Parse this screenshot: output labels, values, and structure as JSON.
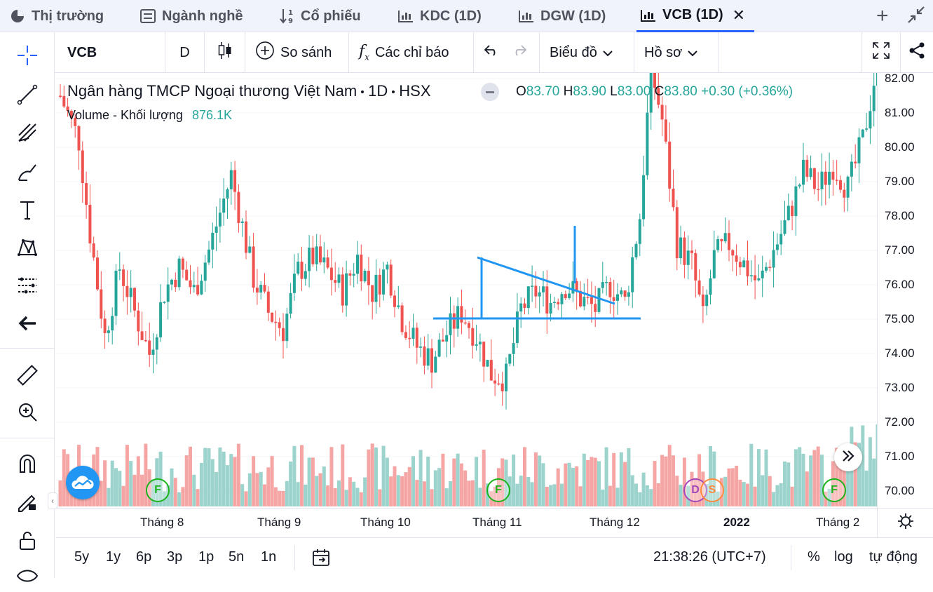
{
  "tabs": [
    {
      "label": "Thị trường",
      "icon": "pie-chart-icon"
    },
    {
      "label": "Ngành nghề",
      "icon": "list-icon"
    },
    {
      "label": "Cổ phiếu",
      "icon": "sort-numeric-icon"
    },
    {
      "label": "KDC (1D)",
      "icon": "chart-icon"
    },
    {
      "label": "DGW (1D)",
      "icon": "chart-icon"
    },
    {
      "label": "VCB (1D)",
      "icon": "chart-icon",
      "active": true
    }
  ],
  "toolbar": {
    "symbol": "VCB",
    "interval": "D",
    "compare": "So sánh",
    "indicators": "Các chỉ báo",
    "chart_menu": "Biểu đồ",
    "profile_menu": "Hồ sơ"
  },
  "legend": {
    "name": "Ngân hàng TMCP Ngoại thương Việt Nam",
    "interval": "1D",
    "exchange": "HSX",
    "o_label": "O",
    "o": "83.70",
    "h_label": "H",
    "h": "83.90",
    "l_label": "L",
    "l": "83.00",
    "c_label": "C",
    "c": "83.80",
    "change": "+0.30 (+0.36%)",
    "volume_label": "Volume - Khối lượng",
    "volume_value": "876.1K"
  },
  "colors": {
    "up": "#26a69a",
    "down": "#ef5350",
    "up_vol": "#9cd3cc",
    "down_vol": "#f5a6a4",
    "drawing": "#2196f3",
    "accent": "#2962ff"
  },
  "y_ticks": [
    "82.00",
    "81.00",
    "80.00",
    "79.00",
    "78.00",
    "77.00",
    "76.00",
    "75.00",
    "74.00",
    "73.00",
    "72.00",
    "71.00",
    "70.00"
  ],
  "x_ticks": [
    {
      "label": "Tháng 8",
      "bold": false
    },
    {
      "label": "Tháng 9",
      "bold": false
    },
    {
      "label": "Tháng 10",
      "bold": false
    },
    {
      "label": "Tháng 11",
      "bold": false
    },
    {
      "label": "Tháng 12",
      "bold": false
    },
    {
      "label": "2022",
      "bold": true
    },
    {
      "label": "Tháng 2",
      "bold": false
    }
  ],
  "events": [
    {
      "letter": "F",
      "color": "#1bb31b"
    },
    {
      "letter": "F",
      "color": "#1bb31b"
    },
    {
      "letter": "D",
      "color": "#a347ba"
    },
    {
      "letter": "S",
      "color": "#ff8a3d"
    },
    {
      "letter": "F",
      "color": "#1bb31b"
    }
  ],
  "ranges": [
    "5y",
    "1y",
    "6p",
    "3p",
    "1p",
    "5n",
    "1n"
  ],
  "time": "21:38:26 (UTC+7)",
  "scale_percent": "%",
  "scale_log": "log",
  "scale_auto": "tự động",
  "chart_data": {
    "type": "candlestick",
    "price_range": [
      69.6,
      82.25
    ],
    "series": "auto"
  }
}
